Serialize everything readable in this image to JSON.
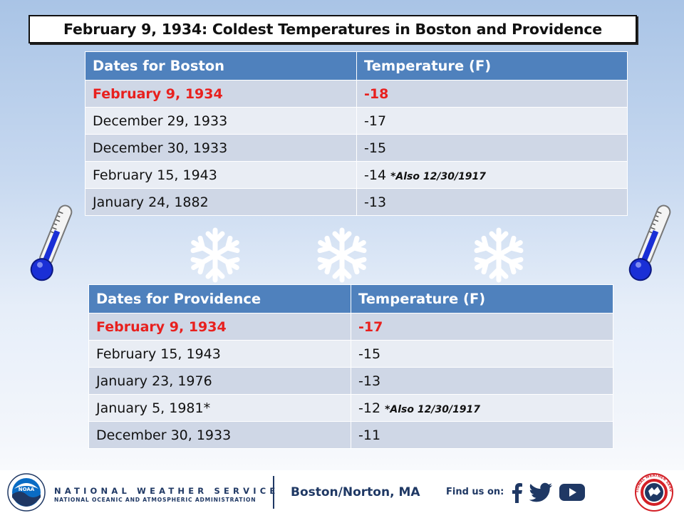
{
  "title": "February 9, 1934: Coldest Temperatures in Boston and Providence",
  "boston_table": {
    "headers": [
      "Dates for Boston",
      "Temperature (F)"
    ],
    "rows": [
      {
        "date": "February 9, 1934",
        "temp": "-18",
        "note": ""
      },
      {
        "date": "December 29, 1933",
        "temp": "-17",
        "note": ""
      },
      {
        "date": "December 30, 1933",
        "temp": "-15",
        "note": ""
      },
      {
        "date": "February 15, 1943",
        "temp": "-14",
        "note": "*Also 12/30/1917"
      },
      {
        "date": "January 24, 1882",
        "temp": "-13",
        "note": ""
      }
    ]
  },
  "providence_table": {
    "headers": [
      "Dates for Providence",
      "Temperature (F)"
    ],
    "rows": [
      {
        "date": "February 9, 1934",
        "temp": "-17",
        "note": ""
      },
      {
        "date": "February 15, 1943",
        "temp": "-15",
        "note": ""
      },
      {
        "date": "January 23, 1976",
        "temp": "-13",
        "note": ""
      },
      {
        "date": "January 5, 1981*",
        "temp": "-12",
        "note": "*Also 12/30/1917"
      },
      {
        "date": "December 30, 1933",
        "temp": "-11",
        "note": ""
      }
    ]
  },
  "footer": {
    "agency": "NATIONAL WEATHER SERVICE",
    "parent_agency": "NATIONAL OCEANIC AND ATMOSPHERIC ADMINISTRATION",
    "office": "Boston/Norton, MA",
    "find_us": "Find us on:",
    "noaa_logo_text": "NOAA",
    "nws_logo_text": "NATIONAL WEATHER SERVICE"
  },
  "icons": {
    "thermometer": "thermometer-icon",
    "snowflake": "snowflake-icon",
    "facebook": "facebook-icon",
    "twitter": "twitter-icon",
    "youtube": "youtube-icon"
  },
  "colors": {
    "header_bg": "#4f81bd",
    "highlight_text": "#e8201e",
    "row_odd": "#cfd7e6",
    "row_even": "#e9edf4",
    "nws_navy": "#1f3864"
  }
}
